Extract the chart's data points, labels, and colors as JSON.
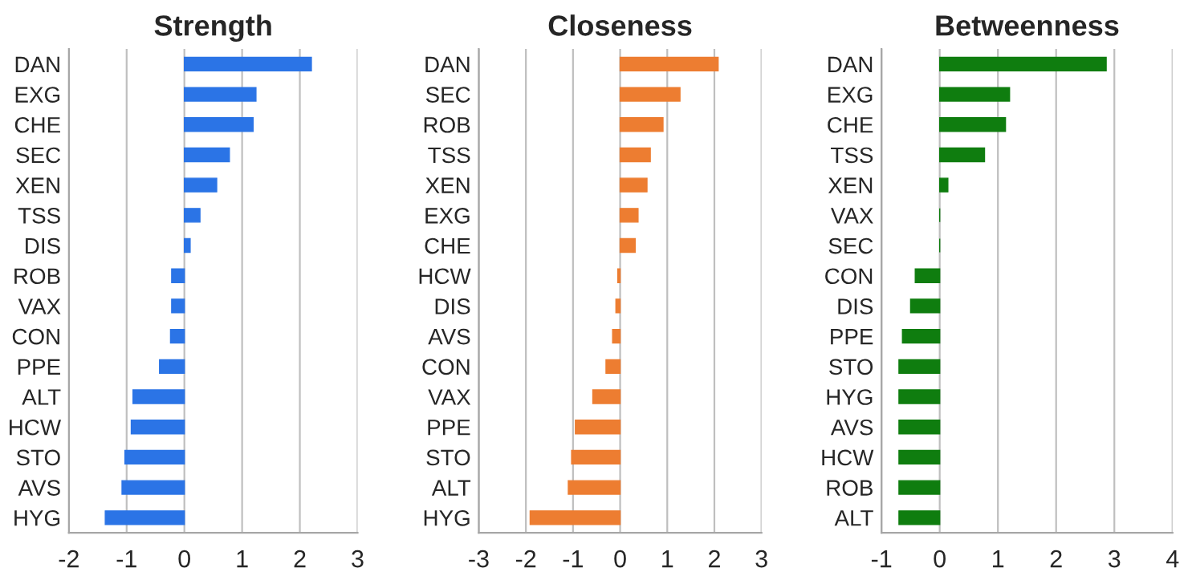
{
  "chart_data": [
    {
      "type": "bar",
      "orientation": "horizontal",
      "title": "Strength",
      "categories": [
        "DAN",
        "EXG",
        "CHE",
        "SEC",
        "XEN",
        "TSS",
        "DIS",
        "ROB",
        "VAX",
        "CON",
        "PPE",
        "ALT",
        "HCW",
        "STO",
        "AVS",
        "HYG"
      ],
      "values": [
        2.2,
        1.24,
        1.19,
        0.78,
        0.56,
        0.27,
        0.1,
        -0.22,
        -0.22,
        -0.24,
        -0.43,
        -0.89,
        -0.92,
        -1.03,
        -1.08,
        -1.37
      ],
      "color": "#2b74e6",
      "xlim": [
        -2,
        3
      ],
      "xticks": [
        -2,
        -1,
        0,
        1,
        2,
        3
      ],
      "grid": "x",
      "legend": false
    },
    {
      "type": "bar",
      "orientation": "horizontal",
      "title": "Closeness",
      "categories": [
        "DAN",
        "SEC",
        "ROB",
        "TSS",
        "XEN",
        "EXG",
        "CHE",
        "HCW",
        "DIS",
        "AVS",
        "CON",
        "VAX",
        "PPE",
        "STO",
        "ALT",
        "HYG"
      ],
      "values": [
        2.08,
        1.27,
        0.91,
        0.64,
        0.57,
        0.38,
        0.32,
        -0.05,
        -0.09,
        -0.16,
        -0.3,
        -0.58,
        -0.95,
        -1.03,
        -1.1,
        -1.91
      ],
      "color": "#ed7d31",
      "xlim": [
        -3,
        3
      ],
      "xticks": [
        -3,
        -2,
        -1,
        0,
        1,
        2,
        3
      ],
      "grid": "x",
      "legend": false
    },
    {
      "type": "bar",
      "orientation": "horizontal",
      "title": "Betweenness",
      "categories": [
        "DAN",
        "EXG",
        "CHE",
        "TSS",
        "XEN",
        "VAX",
        "SEC",
        "CON",
        "DIS",
        "PPE",
        "STO",
        "HYG",
        "AVS",
        "HCW",
        "ROB",
        "ALT"
      ],
      "values": [
        2.86,
        1.2,
        1.13,
        0.77,
        0.14,
        0,
        0,
        -0.42,
        -0.5,
        -0.64,
        -0.7,
        -0.7,
        -0.7,
        -0.7,
        -0.7,
        -0.7
      ],
      "color": "#0f7d0f",
      "xlim": [
        -1,
        4
      ],
      "xticks": [
        -1,
        0,
        1,
        2,
        3,
        4
      ],
      "grid": "x",
      "legend": false
    }
  ]
}
